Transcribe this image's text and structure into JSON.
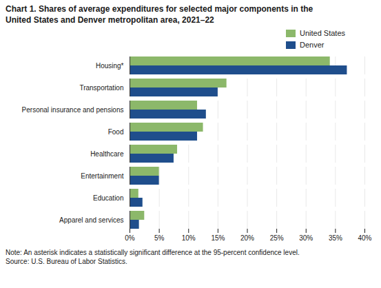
{
  "chart_data": {
    "type": "bar",
    "orientation": "horizontal",
    "title": "Chart 1. Shares of average expenditures for selected major components in the\nUnited States and Denver metropolitan area, 2021–22",
    "categories": [
      "Housing*",
      "Transportation",
      "Personal insurance and pensions",
      "Food",
      "Healthcare",
      "Entertainment",
      "Education",
      "Apparel and services"
    ],
    "series": [
      {
        "name": "United States",
        "color": "#8cb86a",
        "values": [
          34.1,
          16.5,
          11.5,
          12.5,
          8.1,
          5.0,
          1.5,
          2.5
        ]
      },
      {
        "name": "Denver",
        "color": "#1f4e8c",
        "values": [
          37.0,
          15.0,
          13.0,
          11.5,
          7.5,
          5.0,
          2.2,
          1.6
        ]
      }
    ],
    "xlim": [
      0,
      40
    ],
    "xticks": [
      {
        "value": 0,
        "label": "0%"
      },
      {
        "value": 5,
        "label": "5%"
      },
      {
        "value": 10,
        "label": "10%"
      },
      {
        "value": 15,
        "label": "15%"
      },
      {
        "value": 20,
        "label": "20%"
      },
      {
        "value": 25,
        "label": "25%"
      },
      {
        "value": 30,
        "label": "30%"
      },
      {
        "value": 35,
        "label": "35%"
      },
      {
        "value": 40,
        "label": "40%"
      }
    ],
    "grid": true,
    "legend": "upper right",
    "annotations": [
      "Note: An asterisk indicates a statistically significant difference at the 95-percent confidence level.\nSource: U.S. Bureau of Labor Statistics."
    ]
  }
}
